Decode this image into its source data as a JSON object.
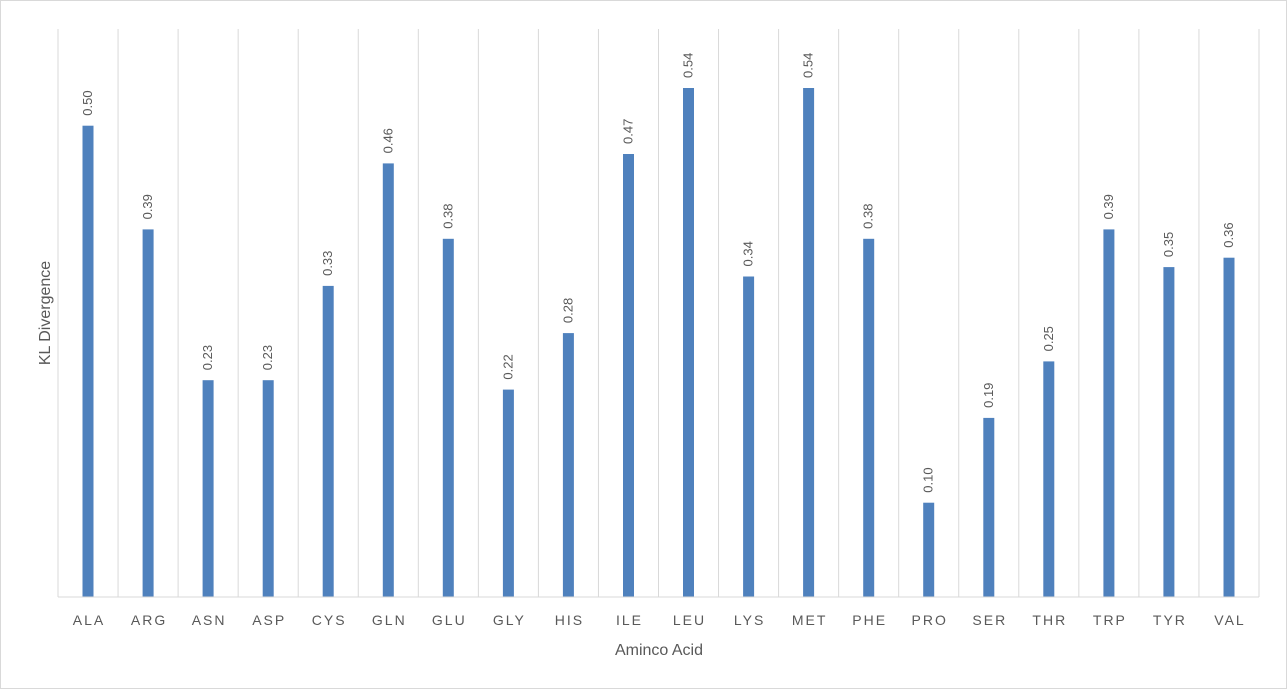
{
  "chart_data": {
    "type": "bar",
    "xlabel": "Aminco Acid",
    "ylabel": "KL Divergence",
    "categories": [
      "ALA",
      "ARG",
      "ASN",
      "ASP",
      "CYS",
      "GLN",
      "GLU",
      "GLY",
      "HIS",
      "ILE",
      "LEU",
      "LYS",
      "MET",
      "PHE",
      "PRO",
      "SER",
      "THR",
      "TRP",
      "TYR",
      "VAL"
    ],
    "values": [
      0.5,
      0.39,
      0.23,
      0.23,
      0.33,
      0.46,
      0.38,
      0.22,
      0.28,
      0.47,
      0.54,
      0.34,
      0.54,
      0.38,
      0.1,
      0.19,
      0.25,
      0.39,
      0.35,
      0.36
    ],
    "value_labels": [
      "0.50",
      "0.39",
      "0.23",
      "0.23",
      "0.33",
      "0.46",
      "0.38",
      "0.22",
      "0.28",
      "0.47",
      "0.54",
      "0.34",
      "0.54",
      "0.38",
      "0.10",
      "0.19",
      "0.25",
      "0.39",
      "0.35",
      "0.36"
    ],
    "ylim": [
      0,
      0.54
    ],
    "grid": "vertical separators between categories",
    "legend": "none",
    "colors": {
      "bar": "#4f81bd",
      "grid": "#d9d9d9",
      "text": "#595959"
    }
  }
}
